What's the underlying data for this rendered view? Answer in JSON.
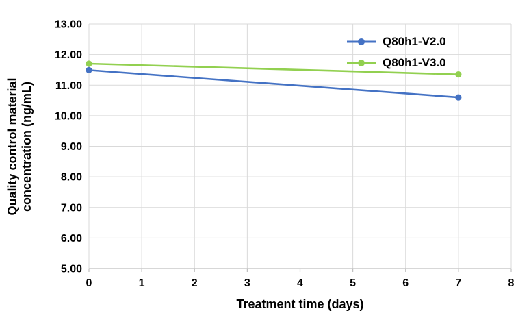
{
  "chart_data": {
    "type": "line",
    "x": [
      0,
      7
    ],
    "series": [
      {
        "name": "Q80h1-V2.0",
        "color": "#4472C4",
        "values": [
          11.49,
          10.6
        ]
      },
      {
        "name": "Q80h1-V3.0",
        "color": "#92D050",
        "values": [
          11.7,
          11.35
        ]
      }
    ],
    "title": "",
    "xlabel": "Treatment time (days)",
    "ylabel": "Quality control material concentration (ng/mL)",
    "xlim": [
      0,
      8
    ],
    "ylim": [
      5.0,
      13.0
    ],
    "x_ticks": [
      0,
      1,
      2,
      3,
      4,
      5,
      6,
      7,
      8
    ],
    "y_ticks": [
      5,
      6,
      7,
      8,
      9,
      10,
      11,
      12,
      13
    ],
    "y_tick_labels": [
      "5.00",
      "6.00",
      "7.00",
      "8.00",
      "9.00",
      "10.00",
      "11.00",
      "12.00",
      "13.00"
    ],
    "grid": true,
    "legend_position": "top-right"
  },
  "axes": {
    "xlabel": "Treatment time (days)",
    "ylabel_line1": "Quality control material",
    "ylabel_line2": "concentration (ng/mL)"
  },
  "legend": {
    "items": [
      {
        "label": "Q80h1-V2.0"
      },
      {
        "label": "Q80h1-V3.0"
      }
    ]
  },
  "colors": {
    "series_blue": "#4472C4",
    "series_green": "#92D050",
    "gridline": "#D9D9D9",
    "axis_line": "#BFBFBF",
    "text": "#000000",
    "background": "#FFFFFF"
  }
}
